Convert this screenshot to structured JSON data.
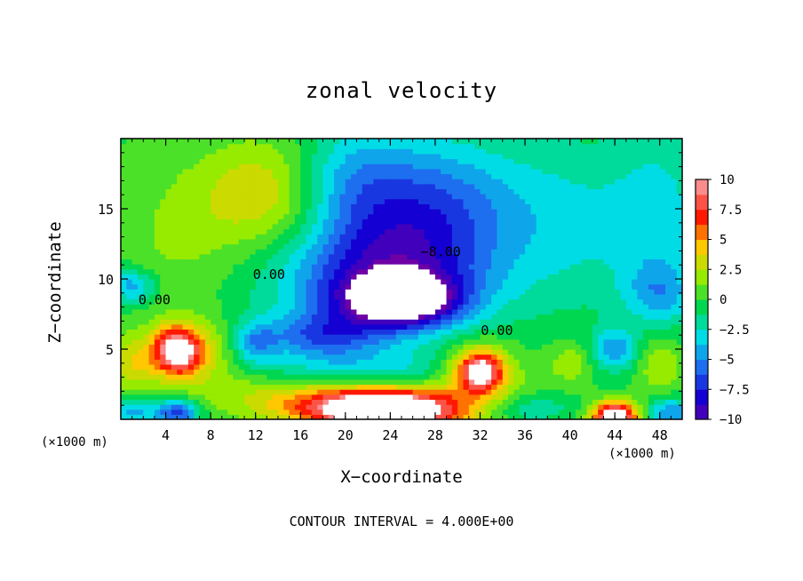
{
  "chart_data": {
    "type": "heatmap",
    "title": "zonal velocity",
    "xlabel": "X−coordinate",
    "ylabel": "Z−coordinate",
    "x_unit_left": "(×1000 m)",
    "x_unit_right": "(×1000 m)",
    "x_ticks": [
      "4",
      "8",
      "12",
      "16",
      "20",
      "24",
      "28",
      "32",
      "36",
      "40",
      "44",
      "48"
    ],
    "x_tick_values": [
      4,
      8,
      12,
      16,
      20,
      24,
      28,
      32,
      36,
      40,
      44,
      48
    ],
    "xlim": [
      0,
      50
    ],
    "y_ticks": [
      "5",
      "10",
      "15"
    ],
    "y_tick_values": [
      5,
      10,
      15
    ],
    "ylim": [
      0,
      20
    ],
    "colorbar": {
      "labels": [
        "10",
        "7.5",
        "5",
        "2.5",
        "0",
        "−2.5",
        "−5",
        "−7.5",
        "−10"
      ],
      "values": [
        10,
        7.5,
        5,
        2.5,
        0,
        -2.5,
        -5,
        -7.5,
        -10
      ],
      "range": [
        -10,
        10
      ]
    },
    "contour_labels": [
      {
        "text": "0.00",
        "x": 13.2,
        "z": 10.0
      },
      {
        "text": "0.00",
        "x": 3.0,
        "z": 8.2
      },
      {
        "text": "−8.00",
        "x": 28.5,
        "z": 11.6
      },
      {
        "text": "0.00",
        "x": 33.5,
        "z": 6.0
      }
    ],
    "contour_interval_text": "CONTOUR INTERVAL = 4.000E+00",
    "features": [
      {
        "x": 25,
        "z": 8.5,
        "value": -10,
        "sx": 5,
        "sz": 1.8
      },
      {
        "x": 23,
        "z": 10,
        "value": -7,
        "sx": 9,
        "sz": 4
      },
      {
        "x": 27,
        "z": 15,
        "value": -6,
        "sx": 8,
        "sz": 5
      },
      {
        "x": 20,
        "z": 17,
        "value": -3,
        "sx": 5,
        "sz": 4
      },
      {
        "x": 40,
        "z": 14,
        "value": -2.5,
        "sx": 8,
        "sz": 6
      },
      {
        "x": 48,
        "z": 14,
        "value": -2.5,
        "sx": 4,
        "sz": 7
      },
      {
        "x": 18,
        "z": 6,
        "value": -5,
        "sx": 5,
        "sz": 1.6
      },
      {
        "x": 12,
        "z": 5.5,
        "value": -4,
        "sx": 2,
        "sz": 1.5
      },
      {
        "x": 1,
        "z": 9.5,
        "value": -4.5,
        "sx": 2,
        "sz": 1.2
      },
      {
        "x": 44,
        "z": 5,
        "value": -4.5,
        "sx": 2,
        "sz": 1.4
      },
      {
        "x": 48,
        "z": 9,
        "value": -3,
        "sx": 3,
        "sz": 2
      },
      {
        "x": 5,
        "z": 5,
        "value": 9,
        "sx": 2,
        "sz": 1.6
      },
      {
        "x": 6,
        "z": 4.5,
        "value": 4,
        "sx": 4,
        "sz": 2.5
      },
      {
        "x": 1,
        "z": 4,
        "value": 3,
        "sx": 2,
        "sz": 2
      },
      {
        "x": 32,
        "z": 3.5,
        "value": 9,
        "sx": 2,
        "sz": 1.4
      },
      {
        "x": 32,
        "z": 3,
        "value": 4,
        "sx": 4,
        "sz": 2.5
      },
      {
        "x": 24,
        "z": 0.6,
        "value": 14,
        "sx": 6,
        "sz": 1.5
      },
      {
        "x": 18,
        "z": 1.2,
        "value": 5,
        "sx": 8,
        "sz": 1.5
      },
      {
        "x": 44,
        "z": 0.3,
        "value": 12,
        "sx": 2,
        "sz": 1
      },
      {
        "x": 48,
        "z": 4,
        "value": 3,
        "sx": 2,
        "sz": 2
      },
      {
        "x": 40,
        "z": 4,
        "value": 2.5,
        "sx": 2,
        "sz": 1.5
      },
      {
        "x": 5,
        "z": 0.5,
        "value": -7,
        "sx": 2,
        "sz": 1
      },
      {
        "x": 1,
        "z": 0.5,
        "value": -4,
        "sx": 2,
        "sz": 1
      },
      {
        "x": 49,
        "z": 0.5,
        "value": -5,
        "sx": 2,
        "sz": 1
      },
      {
        "x": 36,
        "z": 0.8,
        "value": -2.5,
        "sx": 4,
        "sz": 1
      },
      {
        "x": 13,
        "z": 16,
        "value": 4,
        "sx": 6,
        "sz": 4
      },
      {
        "x": 5,
        "z": 13,
        "value": 1.5,
        "sx": 5,
        "sz": 5
      },
      {
        "x": 22,
        "z": 3.5,
        "value": -2.5,
        "sx": 10,
        "sz": 1.5
      },
      {
        "x": 12,
        "z": 2.5,
        "value": 0.8,
        "sx": 4,
        "sz": 1
      }
    ],
    "background_value": 0.5
  }
}
